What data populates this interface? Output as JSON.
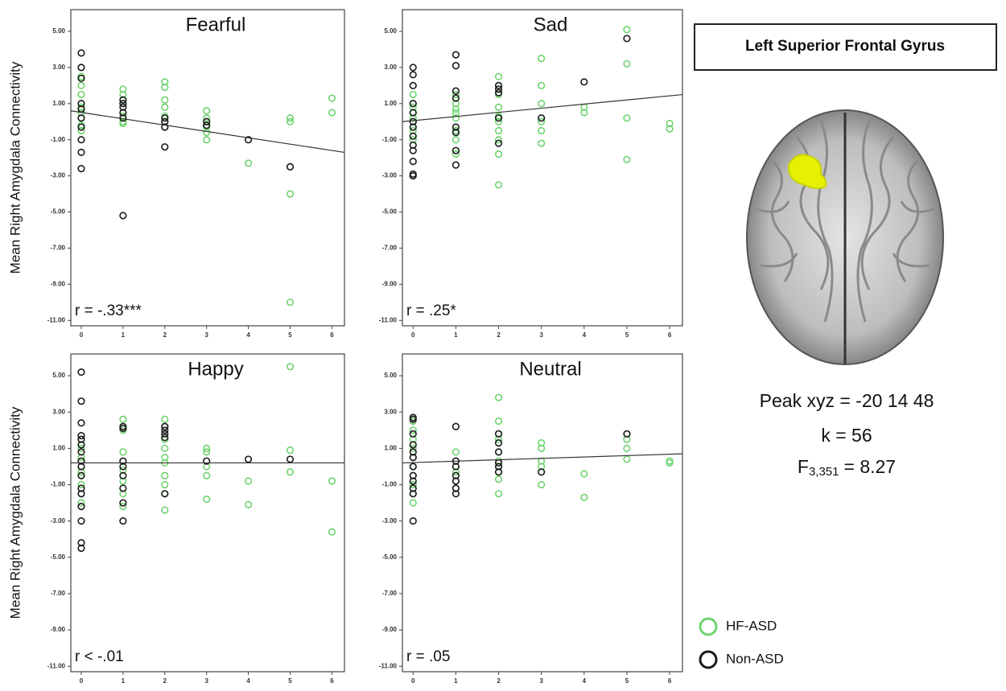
{
  "chart_data": [
    {
      "type": "scatter",
      "title": "Fearful",
      "ylabel": "Mean Right Amygdala Connectivity",
      "annotation": "r = -.33***",
      "xlim": [
        -0.25,
        6.3
      ],
      "ylim": [
        -11.3,
        6.2
      ],
      "xticks": [
        0,
        1,
        2,
        3,
        4,
        5,
        6
      ],
      "yticks": [
        {
          "value": 5,
          "label": "5.00"
        },
        {
          "value": 3,
          "label": "3.00"
        },
        {
          "value": 1,
          "label": "1.00"
        },
        {
          "value": -1,
          "label": "-1.00"
        },
        {
          "value": -3,
          "label": "-3.00"
        },
        {
          "value": -5,
          "label": "-5.00"
        },
        {
          "value": -7,
          "label": "-7.00"
        },
        {
          "value": -9,
          "label": "-9.00"
        },
        {
          "value": -11,
          "label": "-11.00"
        }
      ],
      "fit_line": [
        0.6,
        -1.7
      ],
      "series": [
        {
          "name": "HF-ASD",
          "color": "#6fd36f",
          "x": [
            0,
            0,
            0,
            0,
            0,
            0,
            0,
            0,
            0,
            0,
            1,
            1,
            1,
            1,
            1,
            1,
            1,
            1,
            2,
            2,
            2,
            2,
            2,
            2,
            2,
            3,
            3,
            3,
            3,
            3,
            4,
            4,
            5,
            5,
            5,
            5,
            5,
            6,
            6
          ],
          "values": [
            3.0,
            2.5,
            2.0,
            1.5,
            1.0,
            0.5,
            0.2,
            -0.2,
            -0.5,
            0.8,
            1.8,
            1.5,
            1.2,
            1.0,
            0.5,
            0.3,
            0,
            -0.1,
            2.2,
            1.9,
            1.2,
            0.8,
            0.3,
            0,
            -0.3,
            0.6,
            0.2,
            -0.3,
            -0.6,
            -1.0,
            -1.0,
            -2.3,
            0.2,
            0,
            -2.5,
            -4.0,
            -10.0,
            1.3,
            0.5
          ]
        },
        {
          "name": "Non-ASD",
          "color": "#1a1a1a",
          "x": [
            0,
            0,
            0,
            0,
            0,
            0,
            0,
            0,
            0,
            0,
            1,
            1,
            1,
            1,
            1,
            1,
            2,
            2,
            2,
            2,
            3,
            3,
            4,
            5
          ],
          "values": [
            3.8,
            3.0,
            2.4,
            1.0,
            0.7,
            0.2,
            -0.3,
            -1.0,
            -1.7,
            -2.6,
            1.2,
            1.0,
            0.8,
            0.5,
            0.2,
            -5.2,
            0.2,
            0,
            -0.3,
            -1.4,
            0,
            -0.2,
            -1.0,
            -2.5
          ]
        }
      ]
    },
    {
      "type": "scatter",
      "title": "Sad",
      "annotation": "r = .25*",
      "xlim": [
        -0.25,
        6.3
      ],
      "ylim": [
        -11.3,
        6.2
      ],
      "xticks": [
        0,
        1,
        2,
        3,
        4,
        5,
        6
      ],
      "yticks": [
        {
          "value": 5,
          "label": "5.00"
        },
        {
          "value": 3,
          "label": "3.00"
        },
        {
          "value": 1,
          "label": "1.00"
        },
        {
          "value": -1,
          "label": "-1.00"
        },
        {
          "value": -3,
          "label": "-3.00"
        },
        {
          "value": -5,
          "label": "-5.00"
        },
        {
          "value": -7,
          "label": "-7.00"
        },
        {
          "value": -9,
          "label": "-9.00"
        },
        {
          "value": -11,
          "label": "-11.00"
        }
      ],
      "fit_line": [
        0.0,
        1.5
      ],
      "series": [
        {
          "color": "#6fd36f",
          "x": [
            0,
            0,
            0,
            0,
            0,
            0,
            0,
            0,
            0,
            0,
            1,
            1,
            1,
            1,
            1,
            1,
            1,
            1,
            2,
            2,
            2,
            2,
            2,
            2,
            2,
            2,
            2,
            2,
            3,
            3,
            3,
            3,
            3,
            3,
            4,
            4,
            5,
            5,
            5,
            5,
            6,
            6
          ],
          "values": [
            2.0,
            1.5,
            1.0,
            0.5,
            0,
            -0.5,
            -1.0,
            0.2,
            -0.3,
            0.8,
            1.5,
            1.0,
            0.5,
            -0.5,
            -1.0,
            -1.8,
            0.7,
            0.2,
            2.5,
            2.0,
            1.5,
            0.8,
            0.3,
            0,
            -0.5,
            -1.0,
            -1.8,
            -3.5,
            3.5,
            2.0,
            1.0,
            0,
            -0.5,
            -1.2,
            0.8,
            0.5,
            5.1,
            3.2,
            0.2,
            -2.1,
            -0.1,
            -0.4
          ]
        },
        {
          "color": "#1a1a1a",
          "x": [
            0,
            0,
            0,
            0,
            0,
            0,
            0,
            0,
            0,
            0,
            0,
            0,
            0,
            1,
            1,
            1,
            1,
            1,
            1,
            1,
            1,
            2,
            2,
            2,
            2,
            2,
            3,
            4,
            5
          ],
          "values": [
            3.0,
            2.6,
            2.0,
            1.0,
            0.5,
            0,
            -0.3,
            -0.8,
            -1.3,
            -1.6,
            -2.2,
            -2.9,
            -3.0,
            3.7,
            3.1,
            1.7,
            1.3,
            -0.3,
            -0.6,
            -1.6,
            -2.4,
            2.0,
            1.8,
            1.6,
            0.2,
            -1.2,
            0.2,
            2.2,
            4.6
          ]
        }
      ]
    },
    {
      "type": "scatter",
      "title": "Happy",
      "ylabel": "Mean Right Amygdala Connectivity",
      "annotation": "r < -.01",
      "xlim": [
        -0.25,
        6.3
      ],
      "ylim": [
        -11.3,
        6.2
      ],
      "xticks": [
        0,
        1,
        2,
        3,
        4,
        5,
        6
      ],
      "yticks": [
        {
          "value": 5,
          "label": "5.00"
        },
        {
          "value": 3,
          "label": "3.00"
        },
        {
          "value": 1,
          "label": "1.00"
        },
        {
          "value": -1,
          "label": "-1.00"
        },
        {
          "value": -3,
          "label": "-3.00"
        },
        {
          "value": -5,
          "label": "-5.00"
        },
        {
          "value": -7,
          "label": "-7.00"
        },
        {
          "value": -9,
          "label": "-9.00"
        },
        {
          "value": -11,
          "label": "-11.00"
        }
      ],
      "fit_line": [
        0.2,
        0.2
      ],
      "series": [
        {
          "color": "#6fd36f",
          "x": [
            0,
            0,
            0,
            0,
            0,
            0,
            0,
            0,
            0,
            0,
            1,
            1,
            1,
            1,
            1,
            1,
            1,
            1,
            2,
            2,
            2,
            2,
            2,
            2,
            2,
            2,
            2,
            2,
            3,
            3,
            3,
            3,
            3,
            4,
            4,
            5,
            5,
            5,
            6,
            6
          ],
          "values": [
            1.5,
            1.0,
            0.5,
            0,
            -0.3,
            -0.5,
            -1.0,
            -1.5,
            -2.0,
            0.3,
            2.6,
            2.0,
            0.8,
            0.3,
            -0.2,
            -0.8,
            -1.5,
            -2.2,
            2.6,
            2.2,
            1.5,
            1.0,
            0.5,
            0.2,
            -0.5,
            -1.0,
            -1.5,
            -2.4,
            1.0,
            0.8,
            0,
            -0.5,
            -1.8,
            -0.8,
            -2.1,
            5.5,
            0.9,
            -0.3,
            -0.8,
            -3.6
          ]
        },
        {
          "color": "#1a1a1a",
          "x": [
            0,
            0,
            0,
            0,
            0,
            0,
            0,
            0,
            0,
            0,
            0,
            0,
            0,
            0,
            0,
            0,
            1,
            1,
            1,
            1,
            1,
            1,
            1,
            1,
            2,
            2,
            2,
            2,
            2,
            3,
            4,
            5
          ],
          "values": [
            5.2,
            3.6,
            2.4,
            1.7,
            1.5,
            1.2,
            0.8,
            0.3,
            0,
            -0.5,
            -1.2,
            -1.5,
            -2.2,
            -3.0,
            -4.2,
            -4.5,
            2.2,
            2.1,
            0.3,
            0,
            -0.5,
            -1.2,
            -2.0,
            -3.0,
            2.2,
            2.0,
            1.8,
            1.6,
            -1.5,
            0.3,
            0.4,
            0.4
          ]
        }
      ]
    },
    {
      "type": "scatter",
      "title": "Neutral",
      "annotation": "r = .05",
      "xlim": [
        -0.25,
        6.3
      ],
      "ylim": [
        -11.3,
        6.2
      ],
      "xticks": [
        0,
        1,
        2,
        3,
        4,
        5,
        6
      ],
      "yticks": [
        {
          "value": 5,
          "label": "5.00"
        },
        {
          "value": 3,
          "label": "3.00"
        },
        {
          "value": 1,
          "label": "1.00"
        },
        {
          "value": -1,
          "label": "-1.00"
        },
        {
          "value": -3,
          "label": "-3.00"
        },
        {
          "value": -5,
          "label": "-5.00"
        },
        {
          "value": -7,
          "label": "-7.00"
        },
        {
          "value": -9,
          "label": "-9.00"
        },
        {
          "value": -11,
          "label": "-11.00"
        }
      ],
      "fit_line": [
        0.2,
        0.7
      ],
      "series": [
        {
          "color": "#6fd36f",
          "x": [
            0,
            0,
            0,
            0,
            0,
            0,
            0,
            0,
            0,
            0,
            1,
            1,
            1,
            1,
            1,
            1,
            2,
            2,
            2,
            2,
            2,
            2,
            2,
            2,
            2,
            3,
            3,
            3,
            3,
            3,
            4,
            4,
            5,
            5,
            5,
            6,
            6
          ],
          "values": [
            2.5,
            2.0,
            1.5,
            1.0,
            0.5,
            0,
            -0.5,
            -1.0,
            -1.5,
            -2.0,
            0.8,
            0.3,
            0,
            -0.3,
            -0.8,
            -1.2,
            3.8,
            2.5,
            1.5,
            0.8,
            0.3,
            0,
            -0.3,
            -0.7,
            -1.5,
            1.3,
            1.0,
            0.3,
            0,
            -1.0,
            -0.4,
            -1.7,
            1.5,
            1.0,
            0.4,
            0.3,
            0.2
          ]
        },
        {
          "color": "#1a1a1a",
          "x": [
            0,
            0,
            0,
            0,
            0,
            0,
            0,
            0,
            0,
            0,
            0,
            0,
            1,
            1,
            1,
            1,
            1,
            1,
            1,
            2,
            2,
            2,
            2,
            2,
            2,
            3,
            5
          ],
          "values": [
            2.7,
            2.6,
            1.8,
            1.2,
            0.8,
            0.5,
            0,
            -0.5,
            -0.8,
            -1.2,
            -1.5,
            -3.0,
            2.2,
            0.3,
            0,
            -0.5,
            -0.8,
            -1.2,
            -1.5,
            1.8,
            1.3,
            0.8,
            0.2,
            0,
            -0.3,
            -0.3,
            1.8
          ]
        }
      ]
    }
  ],
  "side_panel": {
    "region": "Left Superior Frontal Gyrus",
    "peak": "Peak xyz = -20 14 48",
    "k": "k = 56",
    "f_stat": {
      "symbol": "F",
      "subscript": "3,351",
      "value": "= 8.27"
    }
  }
}
